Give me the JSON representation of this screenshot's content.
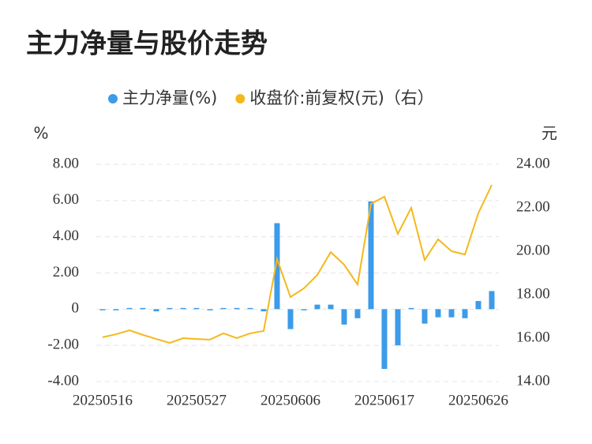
{
  "chart_data": {
    "type": "bar_line",
    "title": "主力净量与股价走势",
    "y_label": "%",
    "y2_label": "元",
    "categories": [
      "20250516",
      null,
      null,
      null,
      null,
      null,
      null,
      "20250527",
      null,
      null,
      null,
      null,
      null,
      null,
      "20250606",
      null,
      null,
      null,
      null,
      null,
      null,
      "20250617",
      null,
      null,
      null,
      null,
      null,
      null,
      "20250626",
      null
    ],
    "series": [
      {
        "name": "主力净量(%)",
        "type": "bar",
        "color": "#3d9be9",
        "values": [
          -0.05,
          -0.03,
          0.02,
          0.02,
          -0.12,
          0.06,
          0.06,
          0.02,
          -0.03,
          0,
          0.03,
          0.02,
          -0.12,
          4.75,
          -1.1,
          -0.05,
          0.25,
          0.25,
          -0.85,
          -0.5,
          5.95,
          -3.3,
          -2.0,
          0.05,
          -0.8,
          -0.45,
          -0.45,
          -0.5,
          0.45,
          1.0
        ]
      },
      {
        "name": "收盘价:前复权(元)（右）",
        "type": "line",
        "axis": "y2",
        "color": "#f5b81c",
        "values": [
          16.04,
          16.18,
          16.36,
          16.15,
          15.96,
          15.78,
          16.0,
          15.96,
          15.93,
          16.22,
          16.0,
          16.22,
          16.33,
          19.64,
          17.89,
          18.29,
          18.91,
          19.96,
          19.38,
          18.47,
          22.18,
          22.51,
          20.8,
          22.0,
          19.6,
          20.55,
          20.0,
          19.85,
          21.75,
          23.05
        ]
      }
    ],
    "ylim": [
      -4,
      8
    ],
    "yticks": [
      {
        "value": -4,
        "label": "-4.00"
      },
      {
        "value": -2,
        "label": "-2.00"
      },
      0,
      {
        "value": 2,
        "label": "2.00"
      },
      {
        "value": 4,
        "label": "4.00"
      },
      {
        "value": 6,
        "label": "6.00"
      },
      {
        "value": 8,
        "label": "8.00"
      }
    ],
    "y2lim": [
      14,
      24
    ],
    "y2ticks": [
      {
        "value": 14,
        "label": "14.00"
      },
      {
        "value": 16,
        "label": "16.00"
      },
      {
        "value": 18,
        "label": "18.00"
      },
      {
        "value": 20,
        "label": "20.00"
      },
      {
        "value": 22,
        "label": "22.00"
      },
      {
        "value": 24,
        "label": "24.00"
      }
    ],
    "grid": true,
    "legend": "top"
  }
}
